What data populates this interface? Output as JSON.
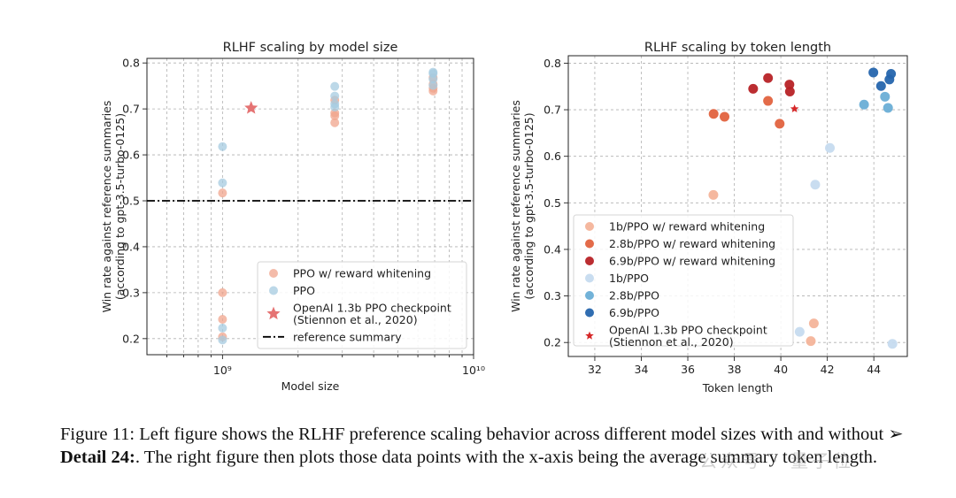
{
  "chart_data": [
    {
      "type": "scatter",
      "title": "RLHF scaling by model size",
      "xlabel": "Model size",
      "ylabel": [
        "Win rate against reference summaries",
        "(according to gpt-3.5-turbo-0125)"
      ],
      "xscale": "log",
      "xlim": [
        500000000.0,
        10000000000.0
      ],
      "ylim": [
        0.165,
        0.81
      ],
      "xticks": [
        1000000000.0,
        10000000000.0
      ],
      "xtick_labels": [
        "10⁹",
        "10¹⁰"
      ],
      "yticks": [
        0.2,
        0.3,
        0.4,
        0.5,
        0.6,
        0.7,
        0.8
      ],
      "ytick_labels": [
        "0.2",
        "0.3",
        "0.4",
        "0.5",
        "0.6",
        "0.7",
        "0.8"
      ],
      "grid": true,
      "legend_position": "bottom-right",
      "series": [
        {
          "name": [
            "PPO w/ reward whitening"
          ],
          "color": "#f0a48c",
          "marker": "circle",
          "points": [
            [
              1000000000.0,
              0.517
            ],
            [
              1000000000.0,
              0.3
            ],
            [
              1000000000.0,
              0.242
            ],
            [
              1000000000.0,
              0.204
            ],
            [
              2800000000.0,
              0.691
            ],
            [
              2800000000.0,
              0.685
            ],
            [
              2800000000.0,
              0.719
            ],
            [
              2800000000.0,
              0.67
            ],
            [
              6900000000.0,
              0.745
            ],
            [
              6900000000.0,
              0.768
            ],
            [
              6900000000.0,
              0.754
            ],
            [
              6900000000.0,
              0.739
            ]
          ]
        },
        {
          "name": [
            "PPO"
          ],
          "color": "#a6cbe0",
          "marker": "circle",
          "points": [
            [
              1000000000.0,
              0.618
            ],
            [
              1000000000.0,
              0.539
            ],
            [
              1000000000.0,
              0.223
            ],
            [
              1000000000.0,
              0.197
            ],
            [
              2800000000.0,
              0.749
            ],
            [
              2800000000.0,
              0.728
            ],
            [
              2800000000.0,
              0.711
            ],
            [
              2800000000.0,
              0.704
            ],
            [
              6900000000.0,
              0.78
            ],
            [
              6900000000.0,
              0.777
            ],
            [
              6900000000.0,
              0.765
            ],
            [
              6900000000.0,
              0.751
            ]
          ]
        },
        {
          "name": [
            "OpenAI 1.3b PPO checkpoint",
            "(Stiennon et al., 2020)"
          ],
          "color": "#e57373",
          "marker": "star",
          "points": [
            [
              1300000000.0,
              0.702
            ]
          ]
        },
        {
          "name": [
            "reference summary"
          ],
          "color": "#000000",
          "marker": "dashdot-line",
          "hline": 0.5,
          "points": []
        }
      ]
    },
    {
      "type": "scatter",
      "title": "RLHF scaling by token length",
      "xlabel": "Token length",
      "ylabel": [
        "Win rate against reference summaries",
        "(according to gpt-3.5-turbo-0125)"
      ],
      "xlim": [
        30.86,
        45.44
      ],
      "ylim": [
        0.17,
        0.816
      ],
      "xticks": [
        32,
        34,
        36,
        38,
        40,
        42,
        44
      ],
      "xtick_labels": [
        "32",
        "34",
        "36",
        "38",
        "40",
        "42",
        "44"
      ],
      "yticks": [
        0.2,
        0.3,
        0.4,
        0.5,
        0.6,
        0.7,
        0.8
      ],
      "ytick_labels": [
        "0.2",
        "0.3",
        "0.4",
        "0.5",
        "0.6",
        "0.7",
        "0.8"
      ],
      "grid": true,
      "legend_position": "bottom-left",
      "series": [
        {
          "name": [
            "1b/PPO w/ reward whitening"
          ],
          "color": "#f4b49a",
          "marker": "circle",
          "points": [
            [
              37.1,
              0.517
            ],
            [
              41.42,
              0.241
            ],
            [
              41.29,
              0.203
            ]
          ]
        },
        {
          "name": [
            "2.8b/PPO w/ reward whitening"
          ],
          "color": "#e2633f",
          "marker": "circle",
          "points": [
            [
              37.11,
              0.691
            ],
            [
              37.58,
              0.685
            ],
            [
              39.45,
              0.719
            ],
            [
              39.95,
              0.67
            ]
          ]
        },
        {
          "name": [
            "6.9b/PPO w/ reward whitening"
          ],
          "color": "#b72226",
          "marker": "circle",
          "points": [
            [
              38.81,
              0.745
            ],
            [
              39.45,
              0.768
            ],
            [
              40.37,
              0.754
            ],
            [
              40.39,
              0.739
            ]
          ]
        },
        {
          "name": [
            "1b/PPO"
          ],
          "color": "#c6dbef",
          "marker": "circle",
          "points": [
            [
              42.11,
              0.618
            ],
            [
              41.48,
              0.539
            ],
            [
              40.81,
              0.223
            ],
            [
              44.8,
              0.197
            ]
          ]
        },
        {
          "name": [
            "2.8b/PPO"
          ],
          "color": "#6aaed6",
          "marker": "circle",
          "points": [
            [
              43.58,
              0.711
            ],
            [
              44.48,
              0.728
            ],
            [
              44.61,
              0.704
            ]
          ]
        },
        {
          "name": [
            "6.9b/PPO"
          ],
          "color": "#2565ad",
          "marker": "circle",
          "points": [
            [
              43.98,
              0.78
            ],
            [
              44.31,
              0.751
            ],
            [
              44.67,
              0.765
            ],
            [
              44.74,
              0.777
            ]
          ]
        },
        {
          "name": [
            "OpenAI 1.3b PPO checkpoint",
            "(Stiennon et al., 2020)"
          ],
          "color": "#d62728",
          "marker": "star-small",
          "points": [
            [
              40.59,
              0.702
            ]
          ]
        }
      ]
    }
  ],
  "caption": {
    "prefix": "Figure 11: Left figure shows the RLHF preference scaling behavior across different model sizes with and without ",
    "arrow": "➢ ",
    "bold": "Detail 24:",
    "suffix": ". The right figure then plots those data points with the x-axis being the average summary token length."
  },
  "watermark": "公众号 · 量子位"
}
